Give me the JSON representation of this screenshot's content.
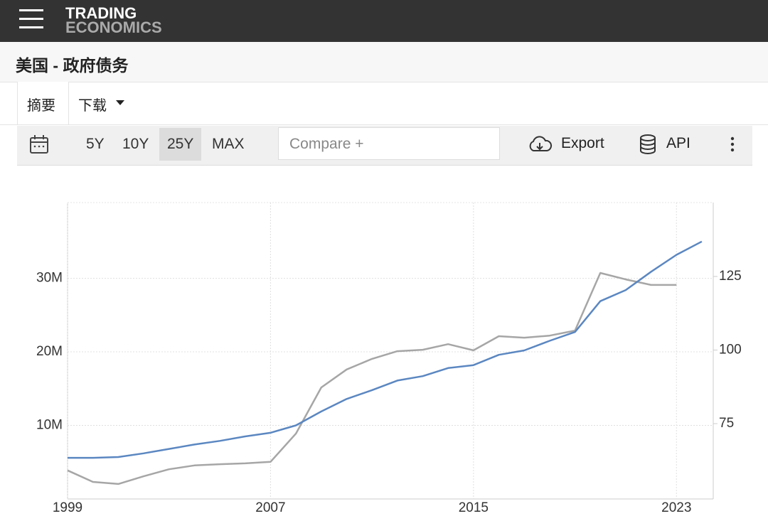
{
  "header": {
    "logo_line1": "TRADING",
    "logo_line2": "ECONOMICS"
  },
  "page_title": "美国 - 政府债务",
  "tabs": [
    "摘要",
    "下载"
  ],
  "toolbar": {
    "ranges": [
      "5Y",
      "10Y",
      "25Y",
      "MAX"
    ],
    "selected_range": 2,
    "compare_placeholder": "Compare +",
    "export": "Export",
    "api": "API"
  },
  "chart_data": {
    "type": "line",
    "x": [
      1999,
      2000,
      2001,
      2002,
      2003,
      2004,
      2005,
      2006,
      2007,
      2008,
      2009,
      2010,
      2011,
      2012,
      2013,
      2014,
      2015,
      2016,
      2017,
      2018,
      2019,
      2020,
      2021,
      2022,
      2023,
      2024
    ],
    "series": [
      {
        "color": "#5b87c1",
        "values": [
          5.6,
          5.6,
          5.7,
          6.2,
          6.8,
          7.4,
          7.9,
          8.5,
          9.0,
          10.0,
          11.9,
          13.6,
          14.8,
          16.1,
          16.7,
          17.8,
          18.2,
          19.6,
          20.2,
          21.5,
          22.7,
          26.9,
          28.4,
          30.9,
          33.2,
          35.0
        ]
      },
      {
        "color": "#a6a6a6",
        "axis": "y2",
        "values": [
          59.1,
          55.2,
          54.5,
          57.1,
          59.5,
          60.8,
          61.2,
          61.5,
          62.0,
          71.6,
          87.3,
          93.4,
          97.0,
          99.6,
          100.1,
          102.0,
          99.9,
          104.7,
          104.2,
          104.9,
          106.6,
          126.2,
          124.0,
          122.1,
          122.1,
          null
        ]
      }
    ],
    "xlim": [
      1999,
      2024.45
    ],
    "xticks": [
      1999,
      2007,
      2015,
      2023
    ],
    "ylim": [
      0,
      40.3
    ],
    "yticks": [
      {
        "value": 10,
        "label": "10M"
      },
      {
        "value": 20,
        "label": "20M"
      },
      {
        "value": 30,
        "label": "30M"
      }
    ],
    "y2lim": [
      49.4,
      150.1
    ],
    "y2ticks": [
      75,
      100,
      125
    ],
    "grid": true
  }
}
